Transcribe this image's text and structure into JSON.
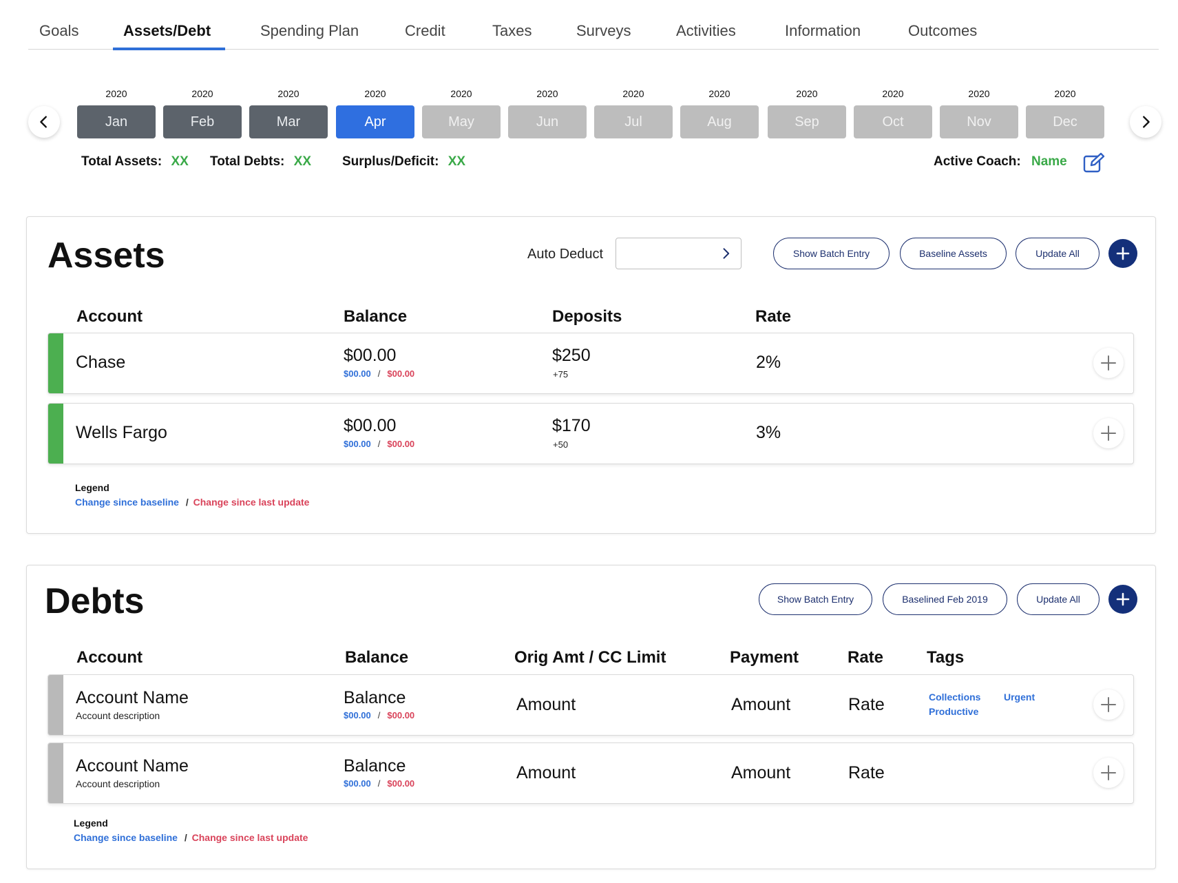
{
  "tabs": [
    "Goals",
    "Assets/Debt",
    "Spending Plan",
    "Credit",
    "Taxes",
    "Surveys",
    "Activities",
    "Information",
    "Outcomes"
  ],
  "active_tab": "Assets/Debt",
  "months": [
    {
      "year": "2020",
      "label": "Jan",
      "state": "past"
    },
    {
      "year": "2020",
      "label": "Feb",
      "state": "past"
    },
    {
      "year": "2020",
      "label": "Mar",
      "state": "past"
    },
    {
      "year": "2020",
      "label": "Apr",
      "state": "current"
    },
    {
      "year": "2020",
      "label": "May",
      "state": "future"
    },
    {
      "year": "2020",
      "label": "Jun",
      "state": "future"
    },
    {
      "year": "2020",
      "label": "Jul",
      "state": "future"
    },
    {
      "year": "2020",
      "label": "Aug",
      "state": "future"
    },
    {
      "year": "2020",
      "label": "Sep",
      "state": "future"
    },
    {
      "year": "2020",
      "label": "Oct",
      "state": "future"
    },
    {
      "year": "2020",
      "label": "Nov",
      "state": "future"
    },
    {
      "year": "2020",
      "label": "Dec",
      "state": "future"
    }
  ],
  "summary": {
    "total_assets_label": "Total Assets:",
    "total_assets_value": "XX",
    "total_debts_label": "Total Debts:",
    "total_debts_value": "XX",
    "surplus_label": "Surplus/Deficit:",
    "surplus_value": "XX",
    "coach_label": "Active Coach:",
    "coach_value": "Name"
  },
  "assets": {
    "title": "Assets",
    "auto_deduct_label": "Auto Deduct",
    "auto_deduct_value": "",
    "buttons": {
      "batch": "Show Batch Entry",
      "baseline": "Baseline Assets",
      "update": "Update All"
    },
    "columns": {
      "account": "Account",
      "balance": "Balance",
      "deposits": "Deposits",
      "rate": "Rate"
    },
    "rows": [
      {
        "account": "Chase",
        "balance": "$00.00",
        "baseline_change": "$00.00",
        "update_change": "$00.00",
        "deposits": "$250",
        "deposits_change": "+75",
        "rate": "2%"
      },
      {
        "account": "Wells Fargo",
        "balance": "$00.00",
        "baseline_change": "$00.00",
        "update_change": "$00.00",
        "deposits": "$170",
        "deposits_change": "+50",
        "rate": "3%"
      }
    ],
    "legend": {
      "title": "Legend",
      "baseline": "Change since baseline",
      "separator": "/",
      "update": "Change since last update"
    }
  },
  "debts": {
    "title": "Debts",
    "buttons": {
      "batch": "Show Batch Entry",
      "baseline": "Baselined Feb 2019",
      "update": "Update All"
    },
    "columns": {
      "account": "Account",
      "balance": "Balance",
      "orig": "Orig Amt / CC Limit",
      "payment": "Payment",
      "rate": "Rate",
      "tags": "Tags"
    },
    "rows": [
      {
        "account": "Account Name",
        "description": "Account description",
        "balance": "Balance",
        "baseline_change": "$00.00",
        "update_change": "$00.00",
        "orig": "Amount",
        "payment": "Amount",
        "rate": "Rate",
        "tags": [
          "Collections",
          "Urgent",
          "Productive"
        ]
      },
      {
        "account": "Account Name",
        "description": "Account description",
        "balance": "Balance",
        "baseline_change": "$00.00",
        "update_change": "$00.00",
        "orig": "Amount",
        "payment": "Amount",
        "rate": "Rate",
        "tags": []
      }
    ],
    "legend": {
      "title": "Legend",
      "baseline": "Change since baseline",
      "separator": "/",
      "update": "Change since last update"
    }
  },
  "colors": {
    "accent_blue": "#2f6fe0",
    "navy": "#14307a",
    "positive_green": "#3aa948",
    "change_red": "#d9435a"
  }
}
